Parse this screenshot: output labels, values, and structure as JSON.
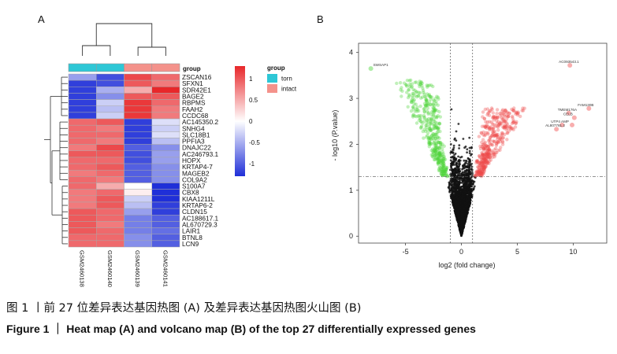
{
  "figure": {
    "panel_a_letter": "A",
    "panel_b_letter": "B",
    "caption_cn": "图 1 丨前 27 位差异表达基因热图 (A) 及差异表达基因热图火山图 (B)",
    "caption_en": "Figure 1 ｜ Heat map (A) and volcano map (B) of the top 27 differentially expressed genes"
  },
  "chart_data": [
    {
      "type": "heatmap",
      "group_label": "group",
      "legend_title": "group",
      "group_levels": [
        {
          "name": "torn",
          "color": "#2ec7d6"
        },
        {
          "name": "intact",
          "color": "#f4928b"
        }
      ],
      "samples": [
        "GSM2460138",
        "GSM2460140",
        "GSM2460139",
        "GSM2460141"
      ],
      "sample_groups": [
        "torn",
        "torn",
        "intact",
        "intact"
      ],
      "genes": [
        "ZSCAN16",
        "SFXN1",
        "SDR42E1",
        "BAGE2",
        "RBPMS",
        "FAAH2",
        "CCDC68",
        "AC145350.2",
        "SNHG4",
        "SLC18B1",
        "PPFIA3",
        "DNAJC22",
        "AC246793.1",
        "HOPX",
        "KRTAP4-7",
        "MAGEB2",
        "COL9A2",
        "S100A7",
        "CBX8",
        "KIAA1211L",
        "KRTAP6-2",
        "CLDN15",
        "AC188617.1",
        "AL670729.3",
        "LAIR1",
        "BTNL8",
        "LCN9"
      ],
      "values": [
        [
          -0.6,
          -1.1,
          1.1,
          0.9
        ],
        [
          -1.2,
          -1.1,
          1.0,
          0.8
        ],
        [
          -1.2,
          -0.5,
          0.5,
          1.3
        ],
        [
          -1.2,
          -0.7,
          1.0,
          1.0
        ],
        [
          -1.2,
          -0.3,
          1.2,
          0.9
        ],
        [
          -1.2,
          -0.4,
          1.2,
          0.8
        ],
        [
          -1.2,
          -0.3,
          1.2,
          0.8
        ],
        [
          0.9,
          1.0,
          -1.2,
          -0.2
        ],
        [
          0.9,
          0.8,
          -1.2,
          -0.3
        ],
        [
          0.9,
          0.9,
          -1.2,
          -0.2
        ],
        [
          0.9,
          0.8,
          -1.2,
          -0.4
        ],
        [
          0.8,
          1.1,
          -1.0,
          -0.7
        ],
        [
          1.0,
          1.0,
          -1.1,
          -0.6
        ],
        [
          0.9,
          0.9,
          -1.1,
          -0.6
        ],
        [
          0.9,
          1.0,
          -1.0,
          -0.7
        ],
        [
          0.8,
          0.9,
          -1.0,
          -0.7
        ],
        [
          0.9,
          0.8,
          -1.0,
          -0.7
        ],
        [
          0.9,
          0.5,
          0.0,
          -1.3
        ],
        [
          0.8,
          0.9,
          0.1,
          -1.3
        ],
        [
          0.8,
          1.0,
          -0.3,
          -1.3
        ],
        [
          0.8,
          1.0,
          -0.4,
          -1.2
        ],
        [
          1.0,
          0.9,
          -0.6,
          -1.2
        ],
        [
          1.0,
          0.9,
          -0.8,
          -1.0
        ],
        [
          1.0,
          0.8,
          -0.8,
          -1.0
        ],
        [
          1.0,
          0.9,
          -0.8,
          -0.9
        ],
        [
          0.9,
          0.9,
          -0.7,
          -1.0
        ],
        [
          0.9,
          0.9,
          -0.7,
          -1.0
        ]
      ],
      "colorbar_ticks": [
        1,
        0.5,
        0,
        -0.5,
        -1
      ],
      "colorbar_tick_labels": [
        "1",
        "0.5",
        "0",
        "-0.5",
        "-1"
      ],
      "color_low": "#1f2fd8",
      "color_mid": "#ffffff",
      "color_high": "#e8272a",
      "vmin": -1.3,
      "vmax": 1.3
    },
    {
      "type": "scatter",
      "xlabel": "log2 (fold change)",
      "ylabel": "- log10 (P.value)",
      "xlim": [
        -9.2,
        13
      ],
      "ylim": [
        -0.15,
        4.2
      ],
      "xticks": [
        -5,
        0,
        5,
        10
      ],
      "xtick_labels": [
        "-5",
        "0",
        "5",
        "10"
      ],
      "yticks": [
        0,
        1,
        2,
        3,
        4
      ],
      "ytick_labels": [
        "0",
        "1",
        "2",
        "3",
        "4"
      ],
      "fc_threshold": [
        -1,
        1
      ],
      "p_threshold": 1.3,
      "colors": {
        "down": "#4cd43a",
        "up": "#ef4b4b",
        "ns": "#111111"
      },
      "labeled_points": [
        {
          "label": "SWSAP1",
          "x": -8.1,
          "y": 3.65,
          "class": "down"
        },
        {
          "label": "AC093543.1",
          "x": 9.7,
          "y": 3.72,
          "class": "up"
        },
        {
          "label": "FAM130B",
          "x": 11.4,
          "y": 2.78,
          "class": "up"
        },
        {
          "label": "TMEM176A",
          "x": 9.6,
          "y": 2.68,
          "class": "up"
        },
        {
          "label": "CELB",
          "x": 10.1,
          "y": 2.58,
          "class": "up"
        },
        {
          "label": "UTP4",
          "x": 9.0,
          "y": 2.42,
          "class": "up"
        },
        {
          "label": "AMP",
          "x": 9.9,
          "y": 2.42,
          "class": "up"
        },
        {
          "label": "AL807761.2",
          "x": 8.5,
          "y": 2.33,
          "class": "up"
        }
      ]
    }
  ]
}
